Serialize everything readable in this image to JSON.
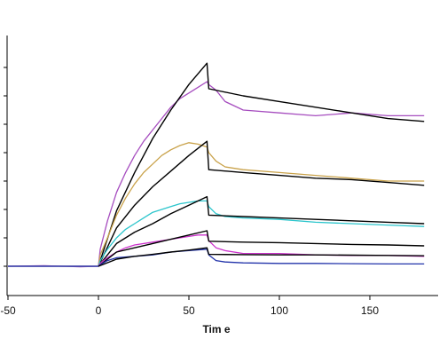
{
  "chart_data": {
    "type": "line",
    "title": "",
    "xlabel": "Tim e",
    "ylabel": "",
    "xlim": [
      -50,
      183
    ],
    "ylim": [
      -2,
      79
    ],
    "x_ticks": [
      -50,
      0,
      50,
      100,
      150
    ],
    "x_tick_labels": [
      "-50",
      "0",
      "50",
      "100",
      "150"
    ],
    "y_ticks": [
      0,
      10,
      20,
      30,
      40,
      50,
      60,
      70
    ],
    "legend": "none",
    "grid": false,
    "series": [
      {
        "color": "#a64dbf",
        "role": "measured",
        "x": [
          -50,
          -30,
          -10,
          0,
          1,
          5,
          10,
          15,
          20,
          25,
          30,
          35,
          40,
          45,
          50,
          55,
          60,
          61,
          65,
          70,
          80,
          100,
          120,
          140,
          160,
          180
        ],
        "y": [
          0,
          0.2,
          -0.2,
          0,
          6,
          16,
          26,
          33,
          39,
          44,
          48,
          52,
          56,
          59,
          61,
          63,
          65,
          64,
          62,
          58,
          55,
          54,
          53,
          54,
          53,
          53
        ]
      },
      {
        "color": "#000000",
        "role": "fit",
        "x": [
          0,
          10,
          20,
          30,
          40,
          50,
          60,
          61,
          80,
          100,
          120,
          140,
          160,
          180
        ],
        "y": [
          0,
          19.5,
          33,
          45,
          55,
          64,
          71.5,
          62.5,
          60,
          58,
          56,
          54,
          52,
          51
        ]
      },
      {
        "color": "#c9a24a",
        "role": "measured",
        "x": [
          -50,
          0,
          1,
          5,
          10,
          15,
          20,
          25,
          30,
          35,
          40,
          45,
          50,
          55,
          60,
          61,
          65,
          70,
          80,
          100,
          120,
          140,
          160,
          180
        ],
        "y": [
          0,
          0,
          4,
          10,
          18,
          24,
          29,
          33,
          36,
          39,
          41,
          42.5,
          43.5,
          43,
          42,
          40,
          37,
          35,
          34,
          33,
          32,
          31,
          30,
          30
        ]
      },
      {
        "color": "#000000",
        "role": "fit",
        "x": [
          0,
          10,
          20,
          30,
          40,
          50,
          60,
          61,
          80,
          100,
          120,
          140,
          160,
          180
        ],
        "y": [
          0,
          13.5,
          21.5,
          28,
          33.5,
          39,
          44,
          34,
          33,
          32,
          31,
          30.5,
          29.5,
          28.5
        ]
      },
      {
        "color": "#2bc5cc",
        "role": "measured",
        "x": [
          -50,
          0,
          1,
          5,
          10,
          15,
          20,
          25,
          30,
          35,
          40,
          45,
          50,
          55,
          60,
          61,
          65,
          70,
          80,
          100,
          120,
          140,
          160,
          180
        ],
        "y": [
          0,
          0,
          2,
          6,
          10,
          13,
          15,
          17,
          19,
          20,
          21,
          22,
          22.5,
          23,
          23,
          21,
          18.5,
          17.5,
          17,
          16.5,
          15.5,
          15,
          14.5,
          14
        ]
      },
      {
        "color": "#000000",
        "role": "fit",
        "x": [
          0,
          10,
          20,
          30,
          40,
          50,
          60,
          61,
          80,
          100,
          120,
          140,
          160,
          180
        ],
        "y": [
          0,
          8,
          12,
          15,
          18.5,
          21.5,
          24.5,
          18,
          17.5,
          17,
          16.5,
          16,
          15.5,
          15
        ]
      },
      {
        "color": "#cc33cc",
        "role": "measured",
        "x": [
          -50,
          0,
          1,
          5,
          10,
          15,
          20,
          30,
          40,
          50,
          55,
          60,
          61,
          65,
          70,
          80,
          100,
          120,
          140,
          160,
          180
        ],
        "y": [
          0,
          0,
          1,
          3,
          5,
          6.5,
          7.5,
          8.5,
          9.5,
          10.5,
          11,
          11,
          9,
          6.5,
          5.5,
          4.5,
          4.5,
          4,
          3.8,
          3.8,
          3.5
        ]
      },
      {
        "color": "#000000",
        "role": "fit",
        "x": [
          0,
          10,
          20,
          30,
          40,
          50,
          60,
          61,
          80,
          100,
          120,
          140,
          160,
          180
        ],
        "y": [
          0,
          5,
          6.5,
          8,
          9.5,
          11,
          12.5,
          8.8,
          8.5,
          8.3,
          8,
          7.7,
          7.5,
          7.2
        ]
      },
      {
        "color": "#2233aa",
        "role": "measured",
        "x": [
          -50,
          0,
          1,
          5,
          10,
          20,
          30,
          40,
          50,
          60,
          61,
          65,
          70,
          80,
          100,
          120,
          140,
          160,
          180
        ],
        "y": [
          0,
          0,
          0.5,
          2,
          3,
          3.5,
          4,
          5,
          5.5,
          6,
          4,
          2,
          1.5,
          1.2,
          1,
          1,
          0.9,
          0.8,
          0.8
        ]
      },
      {
        "color": "#000000",
        "role": "fit",
        "x": [
          0,
          10,
          20,
          30,
          40,
          50,
          60,
          61,
          80,
          100,
          120,
          140,
          160,
          180
        ],
        "y": [
          0,
          2.5,
          3.5,
          4.2,
          5,
          5.7,
          6.5,
          4.2,
          4.1,
          4,
          4,
          3.9,
          3.8,
          3.7
        ]
      }
    ]
  }
}
